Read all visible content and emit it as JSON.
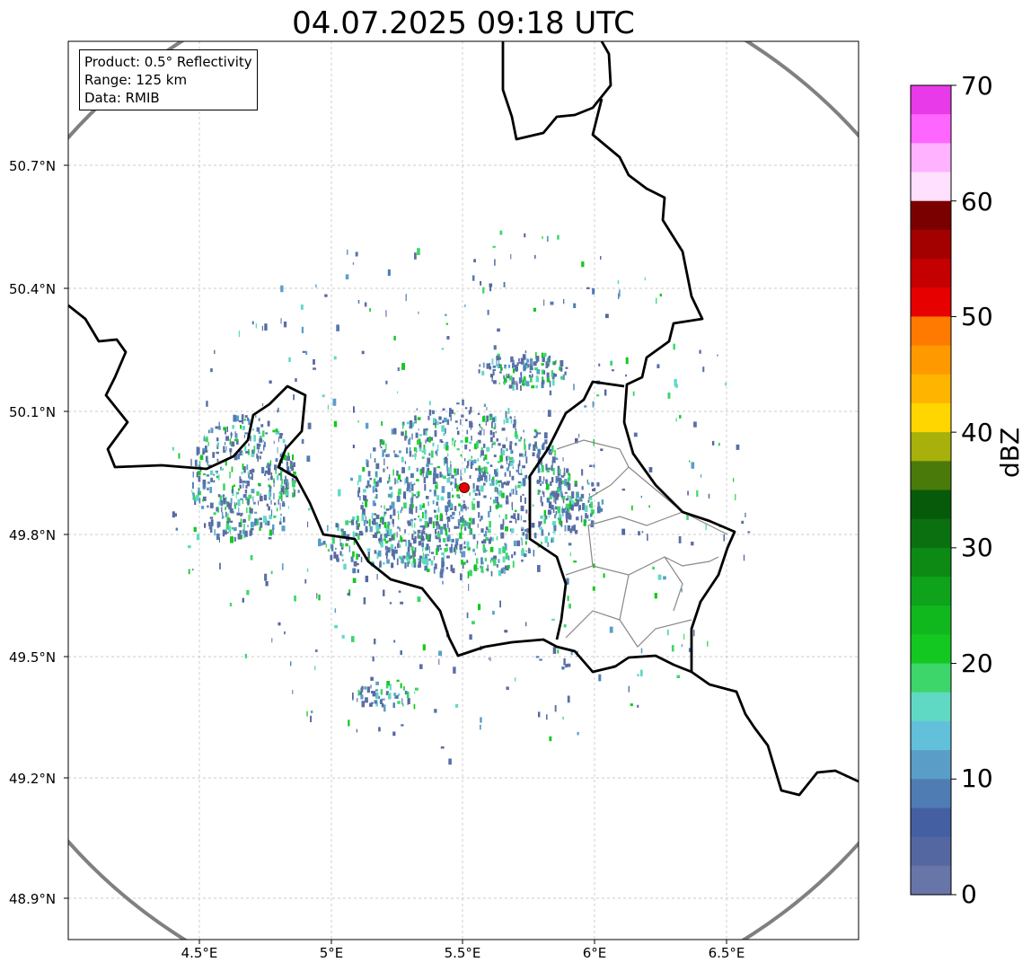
{
  "title": "04.07.2025 09:18 UTC",
  "info_box": {
    "product": "Product: 0.5° Reflectivity",
    "range": "Range: 125 km",
    "data": "Data: RMIB"
  },
  "lat_labels": [
    "50.7°N",
    "50.4°N",
    "50.1°N",
    "49.8°N",
    "49.5°N",
    "49.2°N",
    "48.9°N"
  ],
  "lon_labels": [
    "4.5°E",
    "5°E",
    "5.5°E",
    "6°E",
    "6.5°E"
  ],
  "colorbar": {
    "unit": "dBZ",
    "tick_labels": [
      "70",
      "60",
      "50",
      "40",
      "30",
      "20",
      "10",
      "0"
    ],
    "colors_top_to_bottom": [
      "#e83ae8",
      "#ff66ff",
      "#ffb2ff",
      "#ffe0ff",
      "#7a0000",
      "#a30000",
      "#c40000",
      "#e60000",
      "#ff7a00",
      "#ff9900",
      "#ffb500",
      "#ffd600",
      "#a8b00c",
      "#4a7a0a",
      "#075a0a",
      "#0a7010",
      "#0c8a14",
      "#0ea31a",
      "#10b81e",
      "#14c822",
      "#3dd66a",
      "#60d9c4",
      "#62c0db",
      "#5a9ec8",
      "#4f7db3",
      "#455fa3",
      "#5567a0",
      "#6875a8"
    ]
  },
  "colors": {
    "range_ring": "#808080",
    "country_border": "#000000",
    "province_border": "#888888",
    "radar_site": "#e60000",
    "gridline": "#bbbbbb"
  }
}
